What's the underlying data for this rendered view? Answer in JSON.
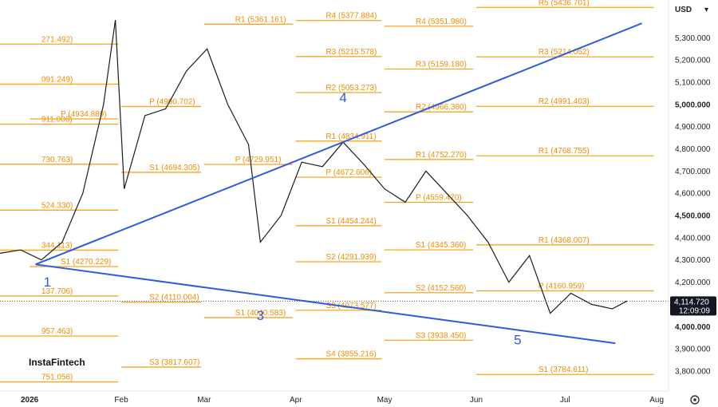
{
  "chart_data": {
    "type": "candlestick",
    "title": "",
    "currency": "USD",
    "ylim": [
      3710,
      5470
    ],
    "x_range": [
      "2025-12-22",
      "2026-08-05"
    ],
    "y_ticks": [
      {
        "value": 3800,
        "label": "3,800.000",
        "bold": false
      },
      {
        "value": 3900,
        "label": "3,900.000",
        "bold": false
      },
      {
        "value": 4000,
        "label": "4,000.000",
        "bold": true
      },
      {
        "value": 4100,
        "label": "4,100.000",
        "bold": false
      },
      {
        "value": 4200,
        "label": "4,200.000",
        "bold": false
      },
      {
        "value": 4300,
        "label": "4,300.000",
        "bold": false
      },
      {
        "value": 4400,
        "label": "4,400.000",
        "bold": false
      },
      {
        "value": 4500,
        "label": "4,500.000",
        "bold": true
      },
      {
        "value": 4600,
        "label": "4,600.000",
        "bold": false
      },
      {
        "value": 4700,
        "label": "4,700.000",
        "bold": false
      },
      {
        "value": 4800,
        "label": "4,800.000",
        "bold": false
      },
      {
        "value": 4900,
        "label": "4,900.000",
        "bold": false
      },
      {
        "value": 5000,
        "label": "5,000.000",
        "bold": true
      },
      {
        "value": 5100,
        "label": "5,100.000",
        "bold": false
      },
      {
        "value": 5200,
        "label": "5,200.000",
        "bold": false
      },
      {
        "value": 5300,
        "label": "5,300.000",
        "bold": false
      }
    ],
    "x_ticks": [
      {
        "date": "2026-01-01",
        "label": "2026",
        "bold": true
      },
      {
        "date": "2026-02-01",
        "label": "Feb",
        "bold": false
      },
      {
        "date": "2026-03-01",
        "label": "Mar",
        "bold": false
      },
      {
        "date": "2026-04-01",
        "label": "Apr",
        "bold": false
      },
      {
        "date": "2026-05-01",
        "label": "May",
        "bold": false
      },
      {
        "date": "2026-06-01",
        "label": "Jun",
        "bold": false
      },
      {
        "date": "2026-07-01",
        "label": "Jul",
        "bold": false
      },
      {
        "date": "2026-08-01",
        "label": "Aug",
        "bold": false
      }
    ],
    "last_price": {
      "value": 4114.72,
      "label": "4,114.720",
      "time": "12:09:09"
    },
    "pivot_levels": [
      {
        "label": "271.492)",
        "value": 5271.5,
        "start": "2025-12-22",
        "end": "2026-01-31"
      },
      {
        "label": "091.249)",
        "value": 5091.2,
        "start": "2025-12-22",
        "end": "2026-01-31"
      },
      {
        "label": "911.006)",
        "value": 4911.0,
        "start": "2025-12-22",
        "end": "2026-01-31"
      },
      {
        "label": "730.763)",
        "value": 4730.8,
        "start": "2025-12-22",
        "end": "2026-01-31"
      },
      {
        "label": "524.330)",
        "value": 4524.3,
        "start": "2025-12-22",
        "end": "2026-01-31"
      },
      {
        "label": "344.113)",
        "value": 4344.1,
        "start": "2025-12-22",
        "end": "2026-01-31"
      },
      {
        "label": "137.706)",
        "value": 4137.7,
        "start": "2025-12-22",
        "end": "2026-01-31"
      },
      {
        "label": "957.463)",
        "value": 3957.5,
        "start": "2025-12-22",
        "end": "2026-01-31"
      },
      {
        "label": "751.056)",
        "value": 3751.1,
        "start": "2025-12-22",
        "end": "2026-01-31"
      },
      {
        "label": "P (4934.889)",
        "value": 4934.9,
        "start": "2026-01-01",
        "end": "2026-01-31"
      },
      {
        "label": "S1 (4270.229)",
        "value": 4270.2,
        "start": "2026-01-01",
        "end": "2026-01-31"
      },
      {
        "label": "P (4990.702)",
        "value": 4990.7,
        "start": "2026-02-01",
        "end": "2026-02-28"
      },
      {
        "label": "S1 (4694.305)",
        "value": 4694.3,
        "start": "2026-02-01",
        "end": "2026-02-28"
      },
      {
        "label": "S2 (4110.004)",
        "value": 4110.0,
        "start": "2026-02-01",
        "end": "2026-02-28"
      },
      {
        "label": "S3 (3817.607)",
        "value": 3817.6,
        "start": "2026-02-01",
        "end": "2026-02-28"
      },
      {
        "label": "R1 (5361.161)",
        "value": 5361.2,
        "start": "2026-03-01",
        "end": "2026-03-31"
      },
      {
        "label": "P (4729.951)",
        "value": 4730.0,
        "start": "2026-03-01",
        "end": "2026-03-31"
      },
      {
        "label": "S1 (4040.583)",
        "value": 4040.6,
        "start": "2026-03-01",
        "end": "2026-03-31"
      },
      {
        "label": "R4 (5377.884)",
        "value": 5377.9,
        "start": "2026-04-01",
        "end": "2026-04-30"
      },
      {
        "label": "R3 (5215.578)",
        "value": 5215.6,
        "start": "2026-04-01",
        "end": "2026-04-30"
      },
      {
        "label": "R2 (5053.273)",
        "value": 5053.3,
        "start": "2026-04-01",
        "end": "2026-04-30"
      },
      {
        "label": "R1 (4834.911)",
        "value": 4834.9,
        "start": "2026-04-01",
        "end": "2026-04-30"
      },
      {
        "label": "P (4672.606)",
        "value": 4672.6,
        "start": "2026-04-01",
        "end": "2026-04-30"
      },
      {
        "label": "S1 (4454.244)",
        "value": 4454.2,
        "start": "2026-04-01",
        "end": "2026-04-30"
      },
      {
        "label": "S2 (4291.939)",
        "value": 4291.9,
        "start": "2026-04-01",
        "end": "2026-04-30"
      },
      {
        "label": "S3 (4073.577)",
        "value": 4073.6,
        "start": "2026-04-01",
        "end": "2026-04-30"
      },
      {
        "label": "S4 (3855.216)",
        "value": 3855.2,
        "start": "2026-04-01",
        "end": "2026-04-30"
      },
      {
        "label": "R4 (5351.980)",
        "value": 5352.0,
        "start": "2026-05-01",
        "end": "2026-05-31"
      },
      {
        "label": "R3 (5159.180)",
        "value": 5159.2,
        "start": "2026-05-01",
        "end": "2026-05-31"
      },
      {
        "label": "R2 (4966.380)",
        "value": 4966.4,
        "start": "2026-05-01",
        "end": "2026-05-31"
      },
      {
        "label": "R1 (4752.270)",
        "value": 4752.3,
        "start": "2026-05-01",
        "end": "2026-05-31"
      },
      {
        "label": "P (4559.470)",
        "value": 4559.5,
        "start": "2026-05-01",
        "end": "2026-05-31"
      },
      {
        "label": "S1 (4345.360)",
        "value": 4345.4,
        "start": "2026-05-01",
        "end": "2026-05-31"
      },
      {
        "label": "S2 (4152.560)",
        "value": 4152.6,
        "start": "2026-05-01",
        "end": "2026-05-31"
      },
      {
        "label": "S3 (3938.450)",
        "value": 3938.5,
        "start": "2026-05-01",
        "end": "2026-05-31"
      },
      {
        "label": "R5 (5436.701)",
        "value": 5436.7,
        "start": "2026-06-01",
        "end": "2026-07-31"
      },
      {
        "label": "R3 (5214.052)",
        "value": 5214.1,
        "start": "2026-06-01",
        "end": "2026-07-31"
      },
      {
        "label": "R2 (4991.403)",
        "value": 4991.4,
        "start": "2026-06-01",
        "end": "2026-07-31"
      },
      {
        "label": "R1 (4768.755)",
        "value": 4768.8,
        "start": "2026-06-01",
        "end": "2026-07-31"
      },
      {
        "label": "R1 (4368.007)",
        "value": 4368.0,
        "start": "2026-06-01",
        "end": "2026-07-31"
      },
      {
        "label": "P (4160.959)",
        "value": 4161.0,
        "start": "2026-06-01",
        "end": "2026-07-31"
      },
      {
        "label": "S1 (3784.611)",
        "value": 3784.6,
        "start": "2026-06-01",
        "end": "2026-07-31"
      }
    ],
    "trendlines": [
      {
        "from": {
          "date": "2026-01-03",
          "value": 4280
        },
        "to": {
          "date": "2026-07-27",
          "value": 5365
        }
      },
      {
        "from": {
          "date": "2026-01-03",
          "value": 4280
        },
        "to": {
          "date": "2026-07-18",
          "value": 3925
        }
      }
    ],
    "wave_labels": [
      {
        "label": "1",
        "date": "2026-01-07",
        "value": 4180
      },
      {
        "label": "3",
        "date": "2026-03-20",
        "value": 4030
      },
      {
        "label": "4",
        "date": "2026-04-17",
        "value": 5010
      },
      {
        "label": "5",
        "date": "2026-06-15",
        "value": 3920
      }
    ],
    "close_series": [
      {
        "date": "2025-12-22",
        "value": 4330
      },
      {
        "date": "2025-12-29",
        "value": 4345
      },
      {
        "date": "2026-01-05",
        "value": 4300
      },
      {
        "date": "2026-01-12",
        "value": 4380
      },
      {
        "date": "2026-01-19",
        "value": 4600
      },
      {
        "date": "2026-01-26",
        "value": 5000
      },
      {
        "date": "2026-01-30",
        "value": 5380
      },
      {
        "date": "2026-02-02",
        "value": 4620
      },
      {
        "date": "2026-02-09",
        "value": 4950
      },
      {
        "date": "2026-02-16",
        "value": 4980
      },
      {
        "date": "2026-02-23",
        "value": 5150
      },
      {
        "date": "2026-03-02",
        "value": 5250
      },
      {
        "date": "2026-03-09",
        "value": 5000
      },
      {
        "date": "2026-03-16",
        "value": 4820
      },
      {
        "date": "2026-03-20",
        "value": 4380
      },
      {
        "date": "2026-03-27",
        "value": 4500
      },
      {
        "date": "2026-04-03",
        "value": 4740
      },
      {
        "date": "2026-04-10",
        "value": 4720
      },
      {
        "date": "2026-04-17",
        "value": 4830
      },
      {
        "date": "2026-04-24",
        "value": 4730
      },
      {
        "date": "2026-05-01",
        "value": 4620
      },
      {
        "date": "2026-05-08",
        "value": 4560
      },
      {
        "date": "2026-05-15",
        "value": 4700
      },
      {
        "date": "2026-05-22",
        "value": 4600
      },
      {
        "date": "2026-05-29",
        "value": 4500
      },
      {
        "date": "2026-06-05",
        "value": 4380
      },
      {
        "date": "2026-06-12",
        "value": 4200
      },
      {
        "date": "2026-06-19",
        "value": 4320
      },
      {
        "date": "2026-06-26",
        "value": 4060
      },
      {
        "date": "2026-07-03",
        "value": 4150
      },
      {
        "date": "2026-07-10",
        "value": 4100
      },
      {
        "date": "2026-07-17",
        "value": 4080
      },
      {
        "date": "2026-07-22",
        "value": 4115
      }
    ]
  },
  "watermark": "InstaFintech",
  "settings_icon": "gear-icon"
}
